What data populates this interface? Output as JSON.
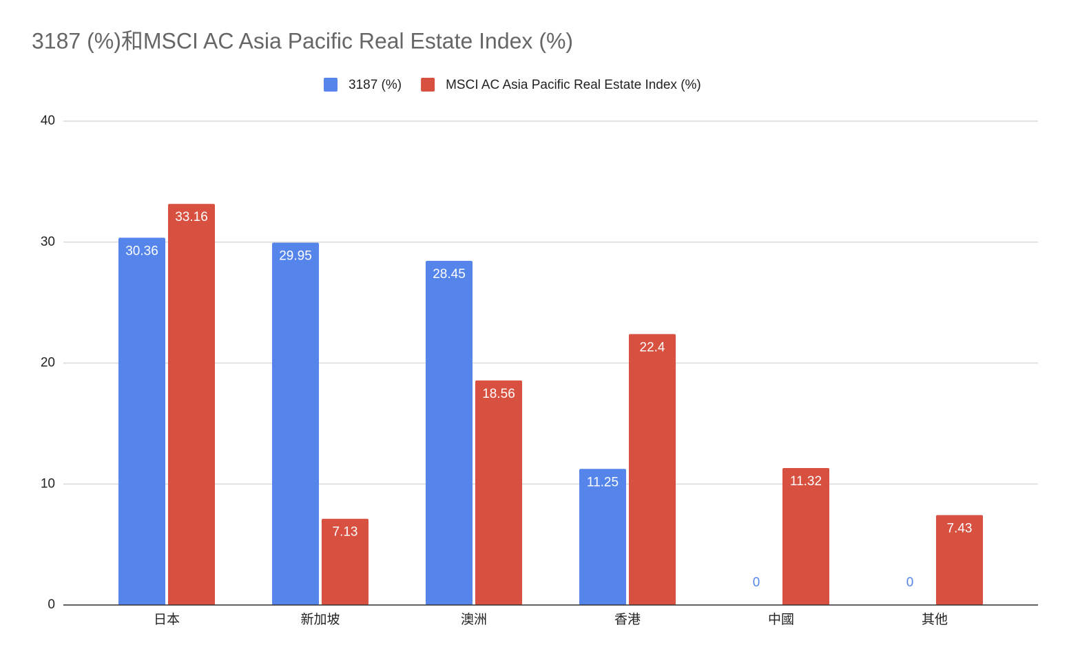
{
  "chart_data": {
    "type": "bar",
    "title": "3187 (%)和MSCI AC Asia Pacific Real Estate Index (%)",
    "categories": [
      "日本",
      "新加坡",
      "澳洲",
      "香港",
      "中國",
      "其他"
    ],
    "series": [
      {
        "name": "3187 (%)",
        "color": "#5585eb",
        "values": [
          30.36,
          29.95,
          28.45,
          11.25,
          0,
          0
        ]
      },
      {
        "name": "MSCI AC Asia Pacific Real Estate Index (%)",
        "color": "#d85040",
        "values": [
          33.16,
          7.13,
          18.56,
          22.4,
          11.32,
          7.43
        ]
      }
    ],
    "ylim": [
      0,
      40
    ],
    "yticks": [
      0,
      10,
      20,
      30,
      40
    ],
    "grid": true,
    "legend": "top"
  }
}
